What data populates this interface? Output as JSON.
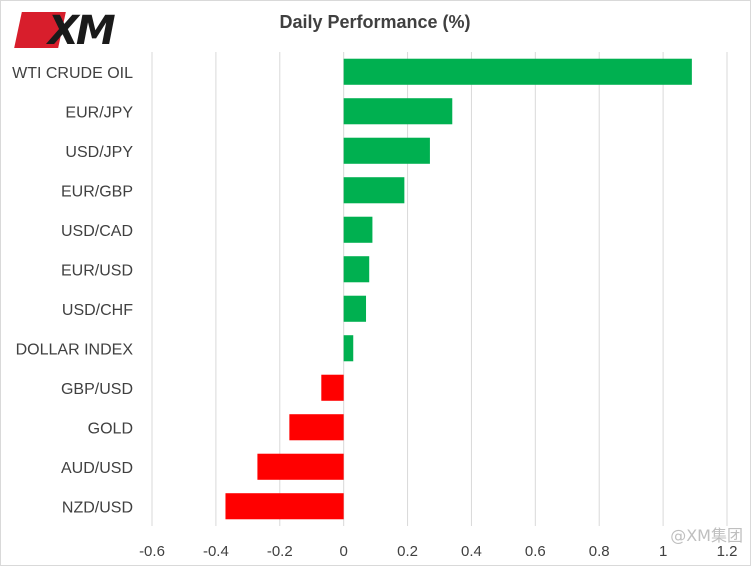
{
  "brand": {
    "logo_text": "XM",
    "logo_color": "#d81e2c"
  },
  "watermark": "@XM集团",
  "chart_data": {
    "type": "bar",
    "orientation": "horizontal",
    "title": "Daily Performance (%)",
    "xlabel": "",
    "ylabel": "",
    "categories": [
      "WTI CRUDE OIL",
      "EUR/JPY",
      "USD/JPY",
      "EUR/GBP",
      "USD/CAD",
      "EUR/USD",
      "USD/CHF",
      "DOLLAR INDEX",
      "GBP/USD",
      "GOLD",
      "AUD/USD",
      "NZD/USD"
    ],
    "values": [
      1.09,
      0.34,
      0.27,
      0.19,
      0.09,
      0.08,
      0.07,
      0.03,
      -0.07,
      -0.17,
      -0.27,
      -0.37
    ],
    "xlim": [
      -0.6,
      1.2
    ],
    "xticks": [
      "-0.6",
      "-0.4",
      "-0.2",
      "0",
      "0.2",
      "0.4",
      "0.6",
      "0.8",
      "1",
      "1.2"
    ],
    "xtick_values": [
      -0.6,
      -0.4,
      -0.2,
      0,
      0.2,
      0.4,
      0.6,
      0.8,
      1.0,
      1.2
    ],
    "grid": "vertical",
    "legend": "none",
    "colors": {
      "positive": "#00b050",
      "negative": "#ff0000",
      "grid": "#d9d9d9"
    }
  }
}
